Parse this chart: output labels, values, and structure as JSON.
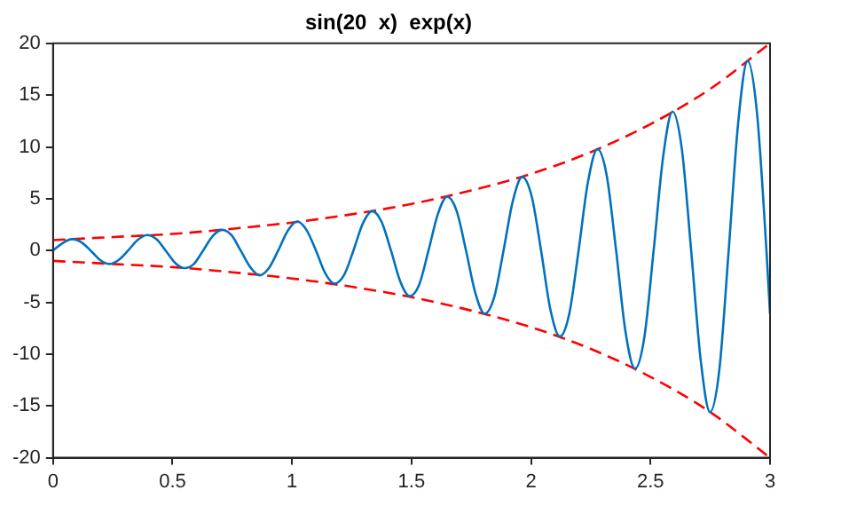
{
  "chart_data": {
    "type": "line",
    "title": "sin(20  x)  exp(x)",
    "xlim": [
      0,
      3
    ],
    "xticks": [
      0,
      0.5,
      1,
      1.5,
      2,
      2.5,
      3
    ],
    "ylim": [
      -20,
      20
    ],
    "yticks": [
      -20,
      -15,
      -10,
      -5,
      0,
      5,
      10,
      15,
      20
    ],
    "grid": false,
    "legend": false,
    "marker": "none",
    "series": [
      {
        "color": "#0072bd",
        "line_style": "solid",
        "x": [
          0,
          0.039,
          0.079,
          0.118,
          0.157,
          0.196,
          0.236,
          0.275,
          0.314,
          0.353,
          0.393,
          0.432,
          0.471,
          0.511,
          0.55,
          0.589,
          0.628,
          0.668,
          0.707,
          0.746,
          0.785,
          0.825,
          0.864,
          0.903,
          0.942,
          0.982,
          1.021,
          1.06,
          1.1,
          1.139,
          1.178,
          1.217,
          1.257,
          1.296,
          1.335,
          1.374,
          1.414,
          1.453,
          1.492,
          1.532,
          1.571,
          1.61,
          1.649,
          1.689,
          1.728,
          1.767,
          1.806,
          1.846,
          1.885,
          1.924,
          1.963,
          2.003,
          2.042,
          2.081,
          2.121,
          2.16,
          2.199,
          2.238,
          2.278,
          2.317,
          2.356,
          2.395,
          2.435,
          2.474,
          2.513,
          2.553,
          2.592,
          2.631,
          2.67,
          2.71,
          2.749,
          2.788,
          2.827,
          2.867,
          2.906,
          2.945,
          2.985,
          3
        ],
        "values": [
          0,
          0.7,
          1.1,
          0.8,
          0,
          -0.9,
          -1.3,
          -0.9,
          0,
          1.0,
          1.5,
          1.1,
          0,
          -1.2,
          -1.7,
          -1.3,
          0,
          1.4,
          2.0,
          1.5,
          0,
          -1.6,
          -2.4,
          -1.7,
          0,
          1.9,
          2.8,
          2.0,
          0,
          -2.2,
          -3.2,
          -2.4,
          0,
          2.6,
          3.8,
          2.8,
          0,
          -3.0,
          -4.4,
          -3.3,
          0,
          3.5,
          5.2,
          3.8,
          0,
          -4.1,
          -6.1,
          -4.5,
          0,
          4.8,
          7.1,
          5.2,
          0,
          -5.7,
          -8.3,
          -6.1,
          0,
          6.6,
          9.8,
          7.2,
          0,
          -7.8,
          -11.4,
          -8.4,
          0,
          9.1,
          13.4,
          9.8,
          0,
          -10.6,
          -15.6,
          -11.5,
          0,
          12.4,
          18.3,
          13.4,
          0,
          -6.1
        ]
      },
      {
        "color": "#ff0000",
        "line_style": "dashed",
        "x": [
          0,
          0.25,
          0.5,
          0.75,
          1,
          1.25,
          1.5,
          1.75,
          2,
          2.25,
          2.5,
          2.75,
          3
        ],
        "values": [
          1,
          1.3,
          1.6,
          2.1,
          2.7,
          3.5,
          4.5,
          5.8,
          7.4,
          9.5,
          12.2,
          15.6,
          20
        ]
      },
      {
        "color": "#ff0000",
        "line_style": "dashed",
        "x": [
          0,
          0.25,
          0.5,
          0.75,
          1,
          1.25,
          1.5,
          1.75,
          2,
          2.25,
          2.5,
          2.75,
          3
        ],
        "values": [
          -1,
          -1.3,
          -1.6,
          -2.1,
          -2.7,
          -3.5,
          -4.5,
          -5.8,
          -7.4,
          -9.5,
          -12.2,
          -15.6,
          -20
        ]
      }
    ]
  }
}
